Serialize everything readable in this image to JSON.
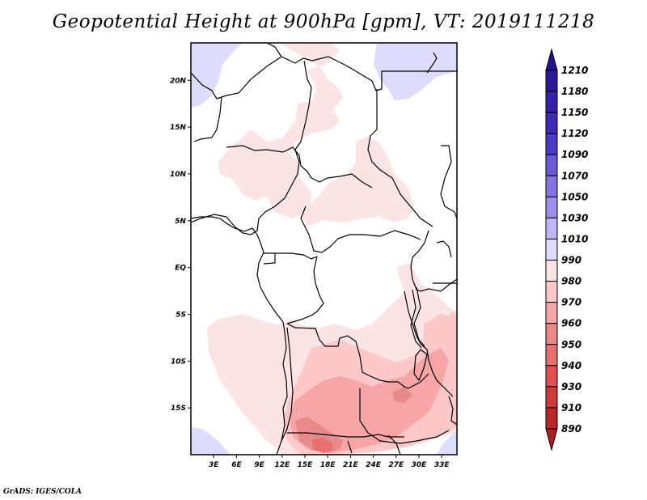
{
  "title": "Geopotential Height at 900hPa [gpm], VT: 2019111218",
  "credit": "GrADS: IGES/COLA",
  "map": {
    "variable": "Geopotential Height",
    "level": "900hPa",
    "units": "gpm",
    "valid_time": "2019111218",
    "lat_range": [
      -20,
      24
    ],
    "lon_range": [
      0,
      35
    ],
    "lat_ticks": [
      {
        "value": 20,
        "label": "20N"
      },
      {
        "value": 15,
        "label": "15N"
      },
      {
        "value": 10,
        "label": "10N"
      },
      {
        "value": 5,
        "label": "5N"
      },
      {
        "value": 0,
        "label": "EQ"
      },
      {
        "value": -5,
        "label": "5S"
      },
      {
        "value": -10,
        "label": "10S"
      },
      {
        "value": -15,
        "label": "15S"
      }
    ],
    "lon_ticks": [
      {
        "value": 3,
        "label": "3E"
      },
      {
        "value": 6,
        "label": "6E"
      },
      {
        "value": 9,
        "label": "9E"
      },
      {
        "value": 12,
        "label": "12E"
      },
      {
        "value": 15,
        "label": "15E"
      },
      {
        "value": 18,
        "label": "18E"
      },
      {
        "value": 21,
        "label": "21E"
      },
      {
        "value": 24,
        "label": "24E"
      },
      {
        "value": 27,
        "label": "27E"
      },
      {
        "value": 30,
        "label": "30E"
      },
      {
        "value": 33,
        "label": "33E"
      }
    ]
  },
  "colorbar": {
    "levels": [
      {
        "label": "1210",
        "color": "#2a1a9a"
      },
      {
        "label": "1180",
        "color": "#3222a8"
      },
      {
        "label": "1150",
        "color": "#3b2bb8"
      },
      {
        "label": "1120",
        "color": "#4b3cc8"
      },
      {
        "label": "1090",
        "color": "#6a5ad6"
      },
      {
        "label": "1070",
        "color": "#8474e2"
      },
      {
        "label": "1050",
        "color": "#9d8ff0"
      },
      {
        "label": "1030",
        "color": "#bfb6f8"
      },
      {
        "label": "1010",
        "color": "#dcdcfc"
      },
      {
        "label": "990",
        "color": "#ffffff"
      },
      {
        "label": "980",
        "color": "#fde4e4"
      },
      {
        "label": "970",
        "color": "#fcc8c8"
      },
      {
        "label": "960",
        "color": "#f7a6a6"
      },
      {
        "label": "950",
        "color": "#e88a8a"
      },
      {
        "label": "940",
        "color": "#e87070"
      },
      {
        "label": "930",
        "color": "#e05050"
      },
      {
        "label": "910",
        "color": "#cc3a3a"
      },
      {
        "label": "890",
        "color": "#b82828"
      }
    ],
    "top_arrow_color": "#23138e",
    "bottom_arrow_color": "#a82020"
  }
}
